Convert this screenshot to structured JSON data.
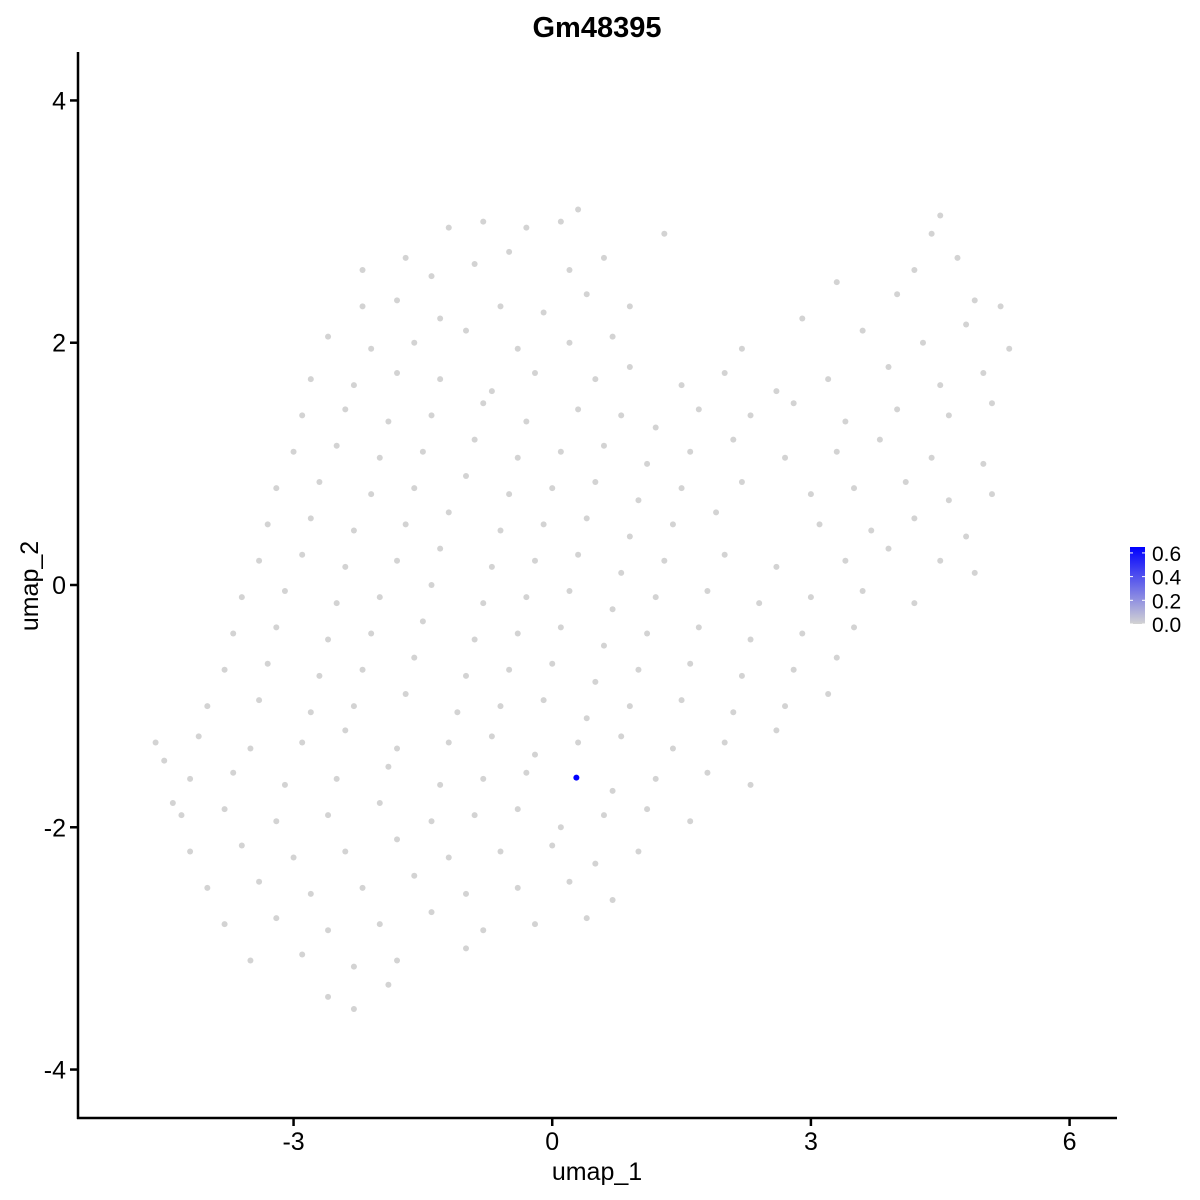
{
  "chart_data": {
    "type": "scatter",
    "title": "Gm48395",
    "xlabel": "umap_1",
    "ylabel": "umap_2",
    "xlim": [
      -5.5,
      6.55
    ],
    "ylim": [
      -4.4,
      4.4
    ],
    "xticks": [
      "-3",
      "0",
      "3",
      "6"
    ],
    "yticks": [
      "-4",
      "-2",
      "0",
      "2",
      "4"
    ],
    "grid": false,
    "legend": {
      "placement": "right",
      "type": "colorbar",
      "labels": [
        "0.6",
        "0.4",
        "0.2",
        "0.0"
      ],
      "range": [
        0,
        0.65
      ],
      "low_color": "#d3d3d3",
      "high_color": "#0000ff"
    },
    "background_points_value": 0,
    "points": [
      [
        -1.2,
        2.95
      ],
      [
        -0.8,
        3.0
      ],
      [
        -0.3,
        2.95
      ],
      [
        0.1,
        3.0
      ],
      [
        0.3,
        3.1
      ],
      [
        4.5,
        3.05
      ],
      [
        4.4,
        2.9
      ],
      [
        -2.2,
        2.6
      ],
      [
        -1.7,
        2.7
      ],
      [
        -1.4,
        2.55
      ],
      [
        -0.9,
        2.65
      ],
      [
        -0.5,
        2.75
      ],
      [
        0.2,
        2.6
      ],
      [
        0.6,
        2.7
      ],
      [
        1.3,
        2.9
      ],
      [
        4.2,
        2.6
      ],
      [
        4.7,
        2.7
      ],
      [
        -2.2,
        2.3
      ],
      [
        -1.8,
        2.35
      ],
      [
        -1.3,
        2.2
      ],
      [
        -0.6,
        2.3
      ],
      [
        -0.1,
        2.25
      ],
      [
        0.4,
        2.4
      ],
      [
        0.9,
        2.3
      ],
      [
        3.3,
        2.5
      ],
      [
        4.0,
        2.4
      ],
      [
        4.9,
        2.35
      ],
      [
        5.2,
        2.3
      ],
      [
        -2.6,
        2.05
      ],
      [
        -2.1,
        1.95
      ],
      [
        -1.6,
        2.0
      ],
      [
        -1.0,
        2.1
      ],
      [
        -0.4,
        1.95
      ],
      [
        0.2,
        2.0
      ],
      [
        0.7,
        2.05
      ],
      [
        2.2,
        1.95
      ],
      [
        2.9,
        2.2
      ],
      [
        3.6,
        2.1
      ],
      [
        4.3,
        2.0
      ],
      [
        4.8,
        2.15
      ],
      [
        5.3,
        1.95
      ],
      [
        -2.8,
        1.7
      ],
      [
        -2.3,
        1.65
      ],
      [
        -1.8,
        1.75
      ],
      [
        -1.3,
        1.7
      ],
      [
        -0.7,
        1.6
      ],
      [
        -0.2,
        1.75
      ],
      [
        0.5,
        1.7
      ],
      [
        0.9,
        1.8
      ],
      [
        1.5,
        1.65
      ],
      [
        2.0,
        1.75
      ],
      [
        2.6,
        1.6
      ],
      [
        3.2,
        1.7
      ],
      [
        3.9,
        1.8
      ],
      [
        4.5,
        1.65
      ],
      [
        5.0,
        1.75
      ],
      [
        -2.9,
        1.4
      ],
      [
        -2.4,
        1.45
      ],
      [
        -1.9,
        1.35
      ],
      [
        -1.4,
        1.4
      ],
      [
        -0.8,
        1.5
      ],
      [
        -0.3,
        1.35
      ],
      [
        0.3,
        1.45
      ],
      [
        0.8,
        1.4
      ],
      [
        1.2,
        1.3
      ],
      [
        1.7,
        1.45
      ],
      [
        2.3,
        1.4
      ],
      [
        2.8,
        1.5
      ],
      [
        3.4,
        1.35
      ],
      [
        4.0,
        1.45
      ],
      [
        4.6,
        1.4
      ],
      [
        5.1,
        1.5
      ],
      [
        -3.0,
        1.1
      ],
      [
        -2.5,
        1.15
      ],
      [
        -2.0,
        1.05
      ],
      [
        -1.5,
        1.1
      ],
      [
        -0.9,
        1.2
      ],
      [
        -0.4,
        1.05
      ],
      [
        0.1,
        1.1
      ],
      [
        0.6,
        1.15
      ],
      [
        1.1,
        1.0
      ],
      [
        1.6,
        1.1
      ],
      [
        2.1,
        1.2
      ],
      [
        2.7,
        1.05
      ],
      [
        3.3,
        1.1
      ],
      [
        3.8,
        1.2
      ],
      [
        4.4,
        1.05
      ],
      [
        5.0,
        1.0
      ],
      [
        -3.2,
        0.8
      ],
      [
        -2.7,
        0.85
      ],
      [
        -2.1,
        0.75
      ],
      [
        -1.6,
        0.8
      ],
      [
        -1.0,
        0.9
      ],
      [
        -0.5,
        0.75
      ],
      [
        0.0,
        0.8
      ],
      [
        0.5,
        0.85
      ],
      [
        1.0,
        0.7
      ],
      [
        1.5,
        0.8
      ],
      [
        2.2,
        0.85
      ],
      [
        3.0,
        0.75
      ],
      [
        3.5,
        0.8
      ],
      [
        4.1,
        0.85
      ],
      [
        4.6,
        0.7
      ],
      [
        5.1,
        0.75
      ],
      [
        -3.3,
        0.5
      ],
      [
        -2.8,
        0.55
      ],
      [
        -2.3,
        0.45
      ],
      [
        -1.7,
        0.5
      ],
      [
        -1.2,
        0.6
      ],
      [
        -0.6,
        0.45
      ],
      [
        -0.1,
        0.5
      ],
      [
        0.4,
        0.55
      ],
      [
        0.9,
        0.4
      ],
      [
        1.4,
        0.5
      ],
      [
        1.9,
        0.6
      ],
      [
        3.1,
        0.5
      ],
      [
        3.7,
        0.45
      ],
      [
        4.2,
        0.55
      ],
      [
        4.8,
        0.4
      ],
      [
        -3.4,
        0.2
      ],
      [
        -2.9,
        0.25
      ],
      [
        -2.4,
        0.15
      ],
      [
        -1.8,
        0.2
      ],
      [
        -1.3,
        0.3
      ],
      [
        -0.7,
        0.15
      ],
      [
        -0.2,
        0.2
      ],
      [
        0.3,
        0.25
      ],
      [
        0.8,
        0.1
      ],
      [
        1.3,
        0.2
      ],
      [
        2.0,
        0.25
      ],
      [
        2.6,
        0.15
      ],
      [
        3.4,
        0.2
      ],
      [
        3.9,
        0.3
      ],
      [
        4.5,
        0.2
      ],
      [
        4.9,
        0.1
      ],
      [
        -3.6,
        -0.1
      ],
      [
        -3.1,
        -0.05
      ],
      [
        -2.5,
        -0.15
      ],
      [
        -2.0,
        -0.1
      ],
      [
        -1.4,
        0.0
      ],
      [
        -0.8,
        -0.15
      ],
      [
        -0.3,
        -0.1
      ],
      [
        0.2,
        -0.05
      ],
      [
        0.7,
        -0.2
      ],
      [
        1.2,
        -0.1
      ],
      [
        1.8,
        -0.05
      ],
      [
        2.4,
        -0.15
      ],
      [
        3.0,
        -0.1
      ],
      [
        3.6,
        -0.05
      ],
      [
        4.2,
        -0.15
      ],
      [
        -3.7,
        -0.4
      ],
      [
        -3.2,
        -0.35
      ],
      [
        -2.6,
        -0.45
      ],
      [
        -2.1,
        -0.4
      ],
      [
        -1.5,
        -0.3
      ],
      [
        -0.9,
        -0.45
      ],
      [
        -0.4,
        -0.4
      ],
      [
        0.1,
        -0.35
      ],
      [
        0.6,
        -0.5
      ],
      [
        1.1,
        -0.4
      ],
      [
        1.7,
        -0.35
      ],
      [
        2.3,
        -0.45
      ],
      [
        2.9,
        -0.4
      ],
      [
        3.5,
        -0.35
      ],
      [
        -3.8,
        -0.7
      ],
      [
        -3.3,
        -0.65
      ],
      [
        -2.7,
        -0.75
      ],
      [
        -2.2,
        -0.7
      ],
      [
        -1.6,
        -0.6
      ],
      [
        -1.0,
        -0.75
      ],
      [
        -0.5,
        -0.7
      ],
      [
        0.0,
        -0.65
      ],
      [
        0.5,
        -0.8
      ],
      [
        1.0,
        -0.7
      ],
      [
        1.6,
        -0.65
      ],
      [
        2.2,
        -0.75
      ],
      [
        2.8,
        -0.7
      ],
      [
        3.3,
        -0.6
      ],
      [
        -4.0,
        -1.0
      ],
      [
        -3.4,
        -0.95
      ],
      [
        -2.8,
        -1.05
      ],
      [
        -2.3,
        -1.0
      ],
      [
        -1.7,
        -0.9
      ],
      [
        -1.1,
        -1.05
      ],
      [
        -0.6,
        -1.0
      ],
      [
        -0.1,
        -0.95
      ],
      [
        0.4,
        -1.1
      ],
      [
        0.9,
        -1.0
      ],
      [
        1.5,
        -0.95
      ],
      [
        2.1,
        -1.05
      ],
      [
        2.7,
        -1.0
      ],
      [
        3.2,
        -0.9
      ],
      [
        -4.6,
        -1.3
      ],
      [
        -4.1,
        -1.25
      ],
      [
        -3.5,
        -1.35
      ],
      [
        -2.9,
        -1.3
      ],
      [
        -2.4,
        -1.2
      ],
      [
        -1.8,
        -1.35
      ],
      [
        -1.2,
        -1.3
      ],
      [
        -0.7,
        -1.25
      ],
      [
        -0.2,
        -1.4
      ],
      [
        0.3,
        -1.3
      ],
      [
        0.8,
        -1.25
      ],
      [
        1.4,
        -1.35
      ],
      [
        2.0,
        -1.3
      ],
      [
        2.6,
        -1.2
      ],
      [
        -4.5,
        -1.45
      ],
      [
        -4.2,
        -1.6
      ],
      [
        -3.7,
        -1.55
      ],
      [
        -3.1,
        -1.65
      ],
      [
        -2.5,
        -1.6
      ],
      [
        -1.9,
        -1.5
      ],
      [
        -1.3,
        -1.65
      ],
      [
        -0.8,
        -1.6
      ],
      [
        -0.3,
        -1.55
      ],
      [
        0.7,
        -1.7
      ],
      [
        1.2,
        -1.6
      ],
      [
        1.8,
        -1.55
      ],
      [
        2.3,
        -1.65
      ],
      [
        -4.4,
        -1.8
      ],
      [
        -4.3,
        -1.9
      ],
      [
        -3.8,
        -1.85
      ],
      [
        -3.2,
        -1.95
      ],
      [
        -2.6,
        -1.9
      ],
      [
        -2.0,
        -1.8
      ],
      [
        -1.4,
        -1.95
      ],
      [
        -0.9,
        -1.9
      ],
      [
        -0.4,
        -1.85
      ],
      [
        0.1,
        -2.0
      ],
      [
        0.6,
        -1.9
      ],
      [
        1.1,
        -1.85
      ],
      [
        1.6,
        -1.95
      ],
      [
        -4.2,
        -2.2
      ],
      [
        -3.6,
        -2.15
      ],
      [
        -3.0,
        -2.25
      ],
      [
        -2.4,
        -2.2
      ],
      [
        -1.8,
        -2.1
      ],
      [
        -1.2,
        -2.25
      ],
      [
        -0.6,
        -2.2
      ],
      [
        0.0,
        -2.15
      ],
      [
        0.5,
        -2.3
      ],
      [
        1.0,
        -2.2
      ],
      [
        -4.0,
        -2.5
      ],
      [
        -3.4,
        -2.45
      ],
      [
        -2.8,
        -2.55
      ],
      [
        -2.2,
        -2.5
      ],
      [
        -1.6,
        -2.4
      ],
      [
        -1.0,
        -2.55
      ],
      [
        -0.4,
        -2.5
      ],
      [
        0.2,
        -2.45
      ],
      [
        0.7,
        -2.6
      ],
      [
        -3.8,
        -2.8
      ],
      [
        -3.2,
        -2.75
      ],
      [
        -2.6,
        -2.85
      ],
      [
        -2.0,
        -2.8
      ],
      [
        -1.4,
        -2.7
      ],
      [
        -0.8,
        -2.85
      ],
      [
        -0.2,
        -2.8
      ],
      [
        0.4,
        -2.75
      ],
      [
        -3.5,
        -3.1
      ],
      [
        -2.9,
        -3.05
      ],
      [
        -2.3,
        -3.15
      ],
      [
        -1.8,
        -3.1
      ],
      [
        -1.0,
        -3.0
      ],
      [
        -2.6,
        -3.4
      ],
      [
        -2.3,
        -3.5
      ],
      [
        -1.9,
        -3.3
      ]
    ],
    "expressed_points": [
      {
        "x": 0.28,
        "y": -1.59,
        "value": 0.65
      }
    ]
  }
}
